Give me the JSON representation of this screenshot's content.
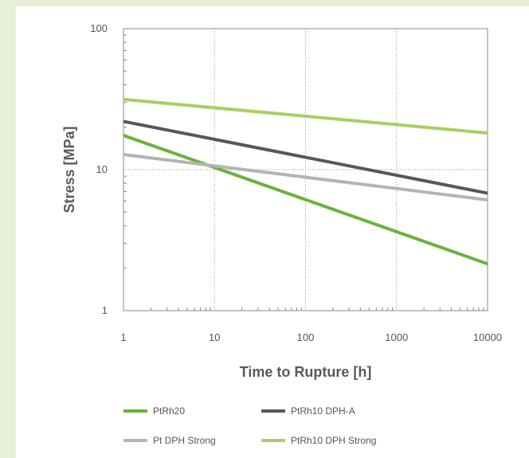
{
  "chart_data": {
    "type": "line",
    "title": "",
    "xlabel": "Time to Rupture [h]",
    "ylabel": "Stress [MPa]",
    "x_scale": "log",
    "y_scale": "log",
    "xlim": [
      1,
      10000
    ],
    "ylim": [
      1,
      100
    ],
    "x_ticks": [
      "1",
      "10",
      "100",
      "1000",
      "10000"
    ],
    "y_ticks": [
      "1",
      "10",
      "100"
    ],
    "grid": true,
    "legend_position": "bottom",
    "series": [
      {
        "name": "PtRh20",
        "color": "#6ab23e",
        "x": [
          1,
          10000
        ],
        "y": [
          17.5,
          2.15
        ]
      },
      {
        "name": "PtRh10 DPH-A",
        "color": "#555759",
        "x": [
          1,
          10000
        ],
        "y": [
          22,
          6.8
        ]
      },
      {
        "name": "Pt DPH Strong",
        "color": "#b3b5b4",
        "x": [
          1,
          10000
        ],
        "y": [
          12.8,
          6.1
        ]
      },
      {
        "name": "PtRh10 DPH Strong",
        "color": "#a8cf61",
        "x": [
          1,
          10000
        ],
        "y": [
          31.5,
          18.2
        ]
      }
    ]
  }
}
